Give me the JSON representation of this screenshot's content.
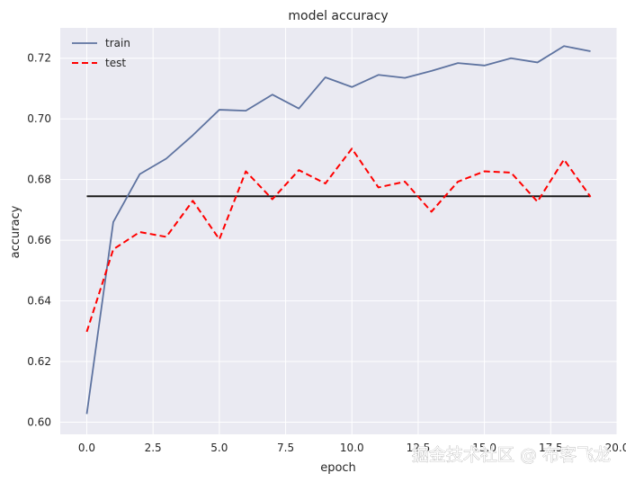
{
  "chart_data": {
    "type": "line",
    "title": "model accuracy",
    "xlabel": "epoch",
    "ylabel": "accuracy",
    "xlim": [
      -1.0,
      20.0
    ],
    "ylim": [
      0.596,
      0.73
    ],
    "xticks": [
      0.0,
      2.5,
      5.0,
      7.5,
      10.0,
      12.5,
      15.0,
      17.5,
      20.0
    ],
    "xtick_labels": [
      "0.0",
      "2.5",
      "5.0",
      "7.5",
      "10.0",
      "12.5",
      "15.0",
      "17.5",
      "20.0"
    ],
    "yticks": [
      0.6,
      0.62,
      0.64,
      0.66,
      0.68,
      0.7,
      0.72
    ],
    "ytick_labels": [
      "0.60",
      "0.62",
      "0.64",
      "0.66",
      "0.68",
      "0.70",
      "0.72"
    ],
    "grid": true,
    "legend_position": "top-left",
    "x": [
      0,
      1,
      2,
      3,
      4,
      5,
      6,
      7,
      8,
      9,
      10,
      11,
      12,
      13,
      14,
      15,
      16,
      17,
      18,
      19
    ],
    "series": [
      {
        "name": "train",
        "style": "solid",
        "color": "#5e73a0",
        "values": [
          0.6027,
          0.666,
          0.6818,
          0.6869,
          0.6946,
          0.703,
          0.7027,
          0.708,
          0.7034,
          0.7137,
          0.7105,
          0.7145,
          0.7135,
          0.7158,
          0.7184,
          0.7176,
          0.72,
          0.7186,
          0.724,
          0.7223
        ]
      },
      {
        "name": "test",
        "style": "dashed",
        "color": "#ff0000",
        "values": [
          0.6298,
          0.657,
          0.6627,
          0.6611,
          0.673,
          0.6603,
          0.6827,
          0.6735,
          0.6831,
          0.6787,
          0.6902,
          0.6774,
          0.6793,
          0.6694,
          0.6793,
          0.6827,
          0.6823,
          0.6727,
          0.6866,
          0.6743
        ]
      }
    ],
    "reference_line": {
      "y": 0.6745,
      "x_range": [
        0,
        19
      ],
      "color": "#1a1a1a"
    }
  },
  "watermark": {
    "text": "掘金技术社区 @ 布客飞龙"
  },
  "colors": {
    "plot_background": "#eaeaf2",
    "grid": "#ffffff",
    "text": "#262626"
  }
}
